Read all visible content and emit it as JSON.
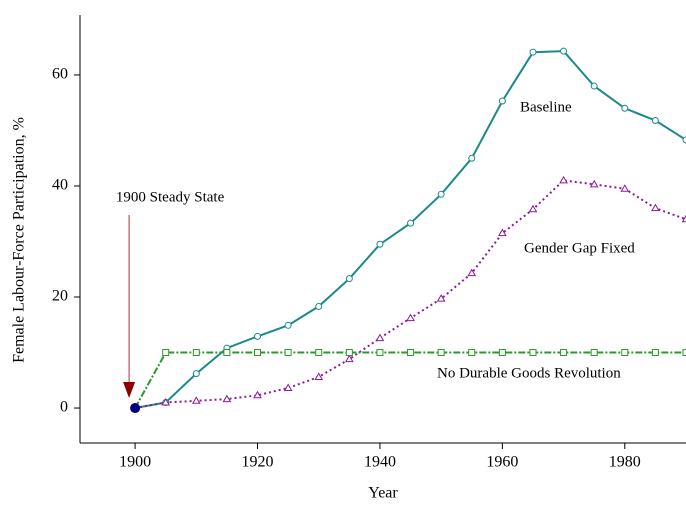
{
  "chart_data": {
    "type": "line",
    "xlabel": "Year",
    "ylabel": "Female Labour-Force Participation, %",
    "annotation": "1900 Steady State",
    "x": [
      1900,
      1905,
      1910,
      1915,
      1920,
      1925,
      1930,
      1935,
      1940,
      1945,
      1950,
      1955,
      1960,
      1965,
      1970,
      1975,
      1980,
      1985,
      1990
    ],
    "series": [
      {
        "name": "Baseline",
        "color": "#1a8a8a",
        "marker": "circle",
        "values": [
          0,
          1,
          6.2,
          10.8,
          12.9,
          14.9,
          18.3,
          23.3,
          29.5,
          33.3,
          38.5,
          45,
          55.3,
          64.1,
          64.3,
          58,
          54,
          51.8,
          48.3
        ]
      },
      {
        "name": "Gender Gap Fixed",
        "color": "#8b1a9a",
        "marker": "triangle",
        "values": [
          0,
          1,
          1.3,
          1.6,
          2.3,
          3.6,
          5.6,
          8.8,
          12.6,
          16.2,
          19.7,
          24.3,
          31.5,
          35.8,
          41,
          40.3,
          39.5,
          36,
          34
        ]
      },
      {
        "name": "No Durable Goods Revolution",
        "color": "#2a9a2a",
        "marker": "square",
        "values": [
          0,
          10,
          10,
          10,
          10,
          10,
          10,
          10,
          10,
          10,
          10,
          10,
          10,
          10,
          10,
          10,
          10,
          10,
          10
        ]
      }
    ],
    "xlim": [
      1891,
      1990
    ],
    "xticks": [
      1900,
      1920,
      1940,
      1960,
      1980
    ],
    "ylim": [
      -6.3,
      70.8
    ],
    "yticks": [
      0,
      20,
      40,
      60
    ]
  }
}
